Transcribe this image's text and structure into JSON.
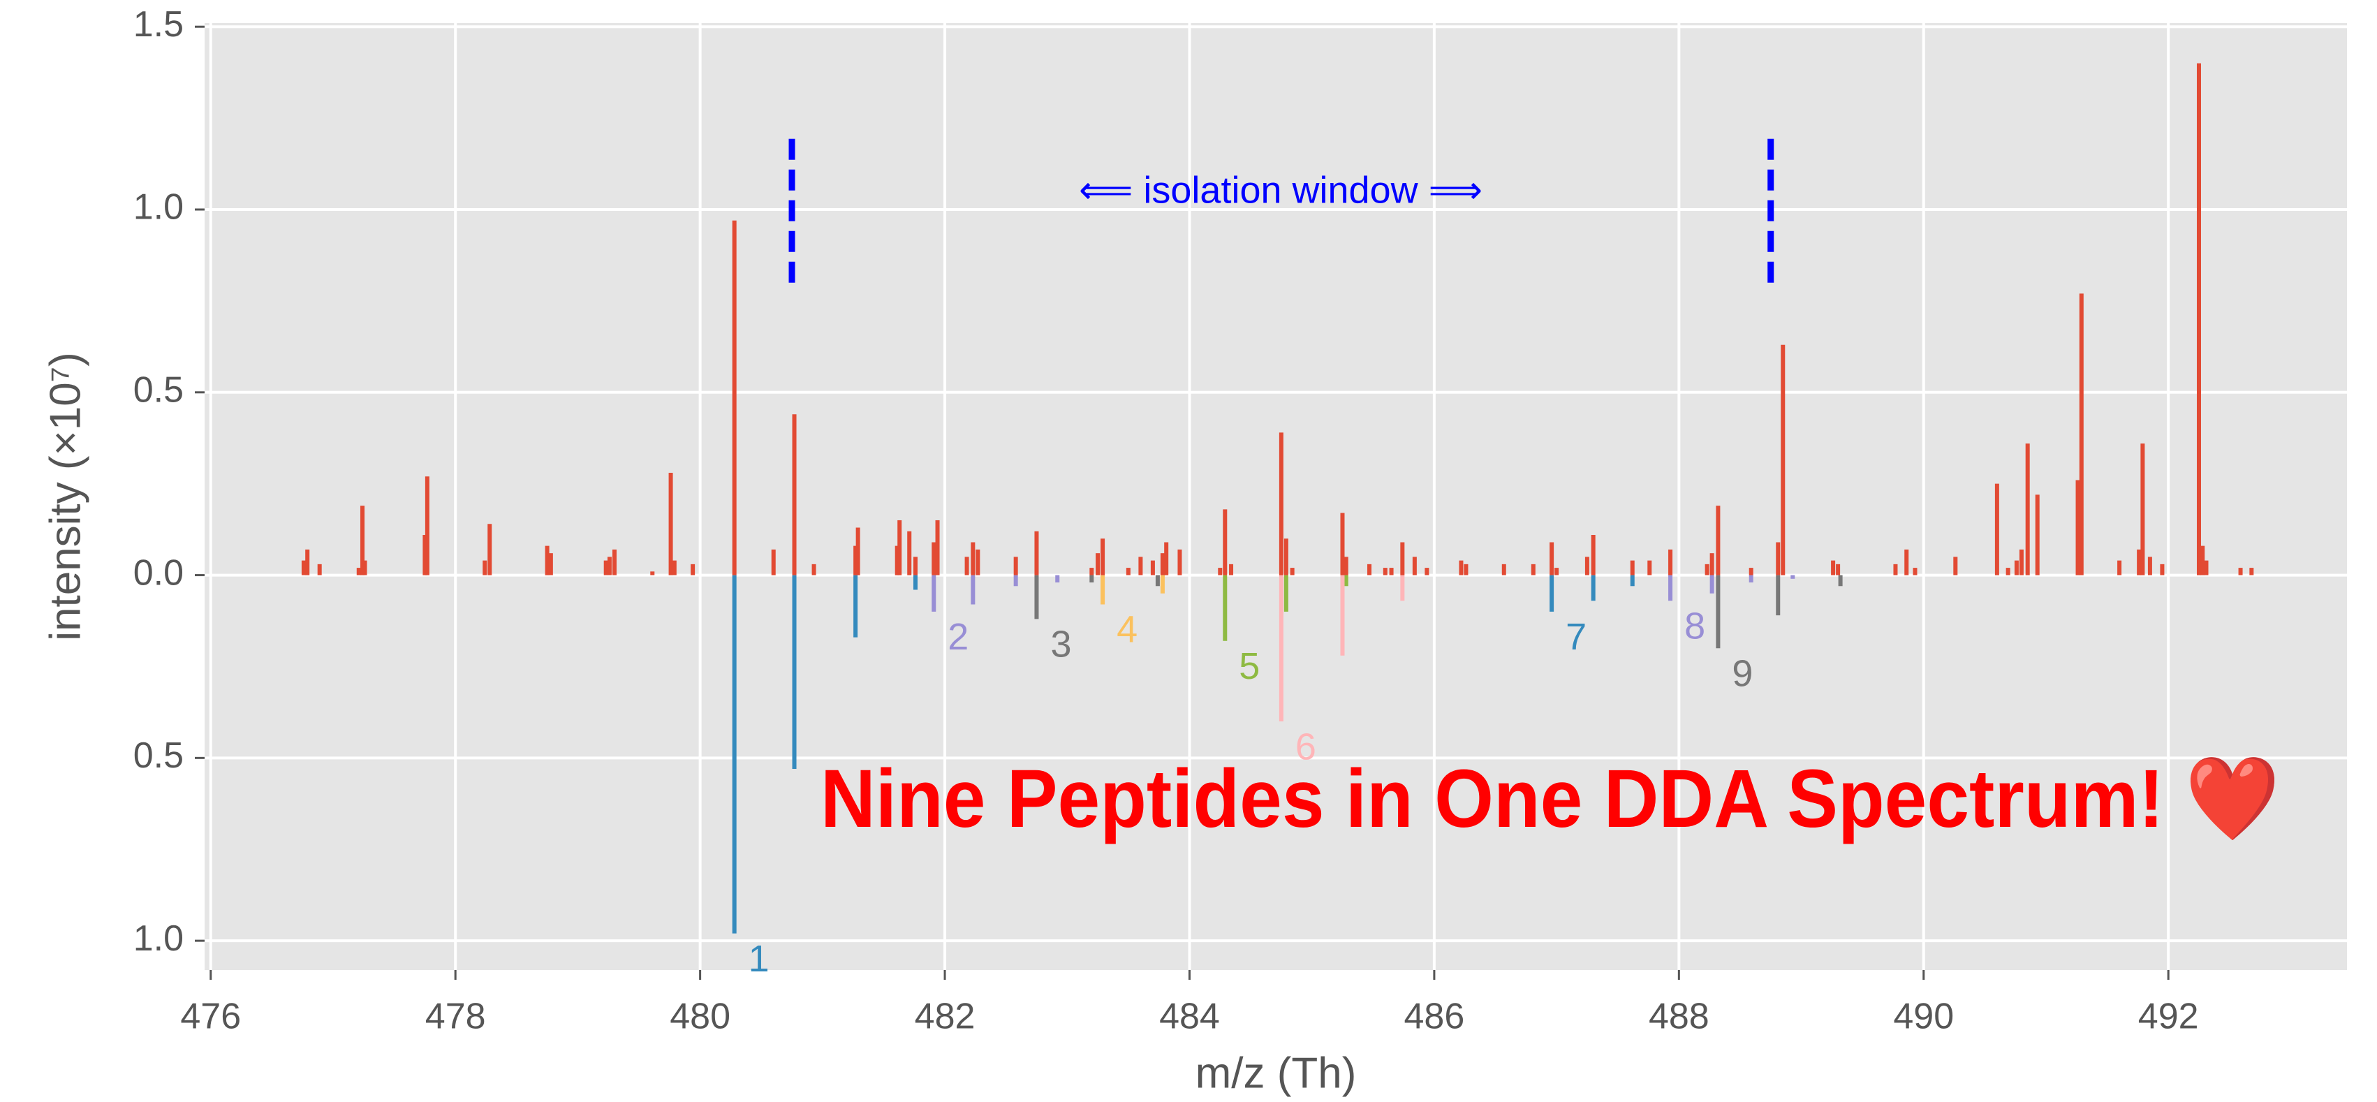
{
  "chart_data": {
    "type": "stem",
    "xlabel": "m/z (Th)",
    "ylabel": "intensity (×10⁷)",
    "xlim": [
      475.95,
      493.46
    ],
    "ylim": [
      -1.08,
      1.51
    ],
    "xticks": [
      476,
      478,
      480,
      482,
      484,
      486,
      488,
      490,
      492
    ],
    "yticks": [
      {
        "value": 1.5,
        "label": "1.5"
      },
      {
        "value": 1,
        "label": "1.0"
      },
      {
        "value": 0.5,
        "label": "0.5"
      },
      {
        "value": 0,
        "label": "0.0"
      },
      {
        "value": -0.5,
        "label": "0.5"
      },
      {
        "value": -1,
        "label": "1.0"
      }
    ],
    "grid": true,
    "observed": {
      "color": "#E24A33",
      "x": [
        476.76,
        476.79,
        476.89,
        477.21,
        477.24,
        477.26,
        477.75,
        477.77,
        478.24,
        478.28,
        478.75,
        478.78,
        479.23,
        479.26,
        479.3,
        479.61,
        479.76,
        479.79,
        479.94,
        480.28,
        480.6,
        480.77,
        480.93,
        481.27,
        481.29,
        481.61,
        481.63,
        481.71,
        481.76,
        481.91,
        481.94,
        482.18,
        482.23,
        482.27,
        482.58,
        482.75,
        483.2,
        483.25,
        483.29,
        483.5,
        483.6,
        483.7,
        483.78,
        483.81,
        483.92,
        484.25,
        484.29,
        484.34,
        484.75,
        484.79,
        484.84,
        485.25,
        485.28,
        485.47,
        485.6,
        485.65,
        485.74,
        485.84,
        485.94,
        486.22,
        486.26,
        486.57,
        486.81,
        486.96,
        487.0,
        487.25,
        487.3,
        487.62,
        487.76,
        487.93,
        488.23,
        488.27,
        488.32,
        488.59,
        488.81,
        488.85,
        489.26,
        489.3,
        489.77,
        489.86,
        489.93,
        490.26,
        490.6,
        490.69,
        490.76,
        490.8,
        490.85,
        490.93,
        491.26,
        491.29,
        491.6,
        491.76,
        491.79,
        491.85,
        491.95,
        492.25,
        492.28,
        492.31,
        492.59,
        492.68
      ],
      "values": [
        0.04,
        0.07,
        0.03,
        0.02,
        0.19,
        0.04,
        0.11,
        0.27,
        0.04,
        0.14,
        0.08,
        0.06,
        0.04,
        0.05,
        0.07,
        0.01,
        0.28,
        0.04,
        0.03,
        0.97,
        0.07,
        0.44,
        0.03,
        0.08,
        0.13,
        0.08,
        0.15,
        0.12,
        0.05,
        0.09,
        0.15,
        0.05,
        0.09,
        0.07,
        0.05,
        0.12,
        0.02,
        0.06,
        0.1,
        0.02,
        0.05,
        0.04,
        0.06,
        0.09,
        0.07,
        0.02,
        0.18,
        0.03,
        0.39,
        0.1,
        0.02,
        0.17,
        0.05,
        0.03,
        0.02,
        0.02,
        0.09,
        0.05,
        0.02,
        0.04,
        0.03,
        0.03,
        0.03,
        0.09,
        0.02,
        0.05,
        0.11,
        0.04,
        0.04,
        0.07,
        0.03,
        0.06,
        0.19,
        0.02,
        0.09,
        0.63,
        0.04,
        0.03,
        0.03,
        0.07,
        0.02,
        0.05,
        0.25,
        0.02,
        0.04,
        0.07,
        0.36,
        0.22,
        0.26,
        0.77,
        0.04,
        0.07,
        0.36,
        0.05,
        0.03,
        1.4,
        0.08,
        0.04,
        0.02,
        0.02
      ]
    },
    "series": [
      {
        "name": "1",
        "color": "#348ABD",
        "x": [
          480.28,
          480.77,
          481.27,
          481.76
        ],
        "values": [
          -0.98,
          -0.53,
          -0.17,
          -0.04
        ]
      },
      {
        "name": "2",
        "color": "#988ED5",
        "x": [
          481.91,
          482.23,
          482.58,
          482.92
        ],
        "values": [
          -0.1,
          -0.08,
          -0.03,
          -0.02
        ]
      },
      {
        "name": "3",
        "color": "#777777",
        "x": [
          482.75,
          483.2,
          483.74
        ],
        "values": [
          -0.12,
          -0.02,
          -0.03
        ]
      },
      {
        "name": "4",
        "color": "#FBC15E",
        "x": [
          483.29,
          483.78
        ],
        "values": [
          -0.08,
          -0.05
        ]
      },
      {
        "name": "5",
        "color": "#8EBA42",
        "x": [
          484.29,
          484.79,
          485.28
        ],
        "values": [
          -0.18,
          -0.1,
          -0.03
        ]
      },
      {
        "name": "6",
        "color": "#FFB5B8",
        "x": [
          484.75,
          485.25,
          485.74
        ],
        "values": [
          -0.4,
          -0.22,
          -0.07
        ]
      },
      {
        "name": "7",
        "color": "#348ABD",
        "x": [
          486.96,
          487.3,
          487.62
        ],
        "values": [
          -0.1,
          -0.07,
          -0.03
        ]
      },
      {
        "name": "8",
        "color": "#988ED5",
        "x": [
          487.93,
          488.27,
          488.59,
          488.93
        ],
        "values": [
          -0.07,
          -0.05,
          -0.02,
          -0.01
        ]
      },
      {
        "name": "9",
        "color": "#777777",
        "x": [
          488.32,
          488.81,
          489.32
        ],
        "values": [
          -0.2,
          -0.11,
          -0.03
        ]
      }
    ],
    "isolation_window": {
      "label": "⟸ isolation window ⟹",
      "color": "#0000ff",
      "x": [
        480.75,
        488.75
      ],
      "ymin": 0.8,
      "ymax": 1.2
    },
    "annotation": "Nine Peptides in One DDA Spectrum! ❤️"
  }
}
